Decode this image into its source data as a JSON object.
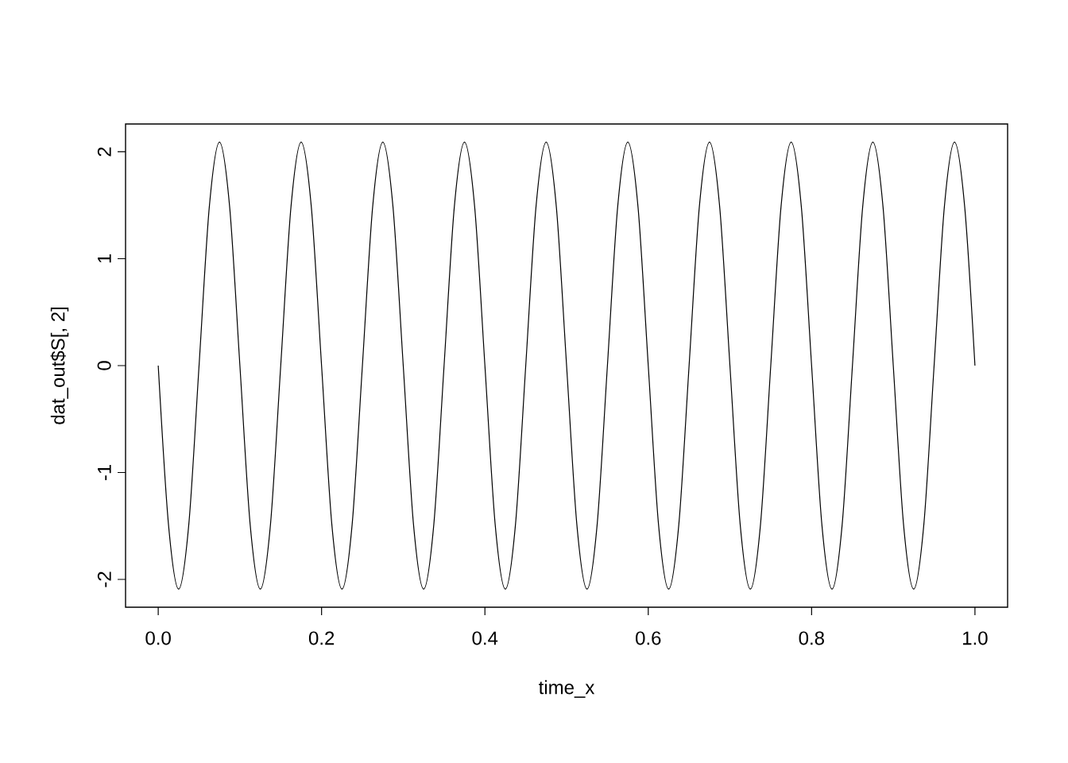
{
  "chart_data": {
    "type": "line",
    "xlabel": "time_x",
    "ylabel": "dat_out$S[, 2]",
    "xlim": [
      -0.04,
      1.04
    ],
    "ylim": [
      -2.26,
      2.26
    ],
    "xticks": [
      {
        "value": 0,
        "label": "0.0"
      },
      {
        "value": 0.2,
        "label": "0.2"
      },
      {
        "value": 0.4,
        "label": "0.4"
      },
      {
        "value": 0.6,
        "label": "0.6"
      },
      {
        "value": 0.8,
        "label": "0.8"
      },
      {
        "value": 1,
        "label": "1.0"
      }
    ],
    "yticks": [
      -2,
      -1,
      0,
      1,
      2
    ],
    "grid": false,
    "marker": "none",
    "line_style": "solid",
    "x": [
      0,
      0.0125,
      0.025,
      0.0375,
      0.05,
      0.0625,
      0.075,
      0.0875,
      0.1,
      0.1125,
      0.125,
      0.1375,
      0.15,
      0.1625,
      0.175,
      0.1875,
      0.2,
      0.2125,
      0.225,
      0.2375,
      0.25,
      0.2625,
      0.275,
      0.2875,
      0.3,
      0.3125,
      0.325,
      0.3375,
      0.35,
      0.3625,
      0.375,
      0.3875,
      0.4,
      0.4125,
      0.425,
      0.4375,
      0.45,
      0.4625,
      0.475,
      0.4875,
      0.5,
      0.5125,
      0.525,
      0.5375,
      0.55,
      0.5625,
      0.575,
      0.5875,
      0.6,
      0.6125,
      0.625,
      0.6375,
      0.65,
      0.6625,
      0.675,
      0.6875,
      0.7,
      0.7125,
      0.725,
      0.7375,
      0.75,
      0.7625,
      0.775,
      0.7875,
      0.8,
      0.8125,
      0.825,
      0.8375,
      0.85,
      0.8625,
      0.875,
      0.8875,
      0.9,
      0.9125,
      0.925,
      0.9375,
      0.95,
      0.9625,
      0.975,
      0.9875,
      1
    ],
    "series": [
      {
        "color": "#000000",
        "values": [
          0,
          -1.48,
          -2.09,
          -1.48,
          0,
          1.48,
          2.09,
          1.48,
          0,
          -1.48,
          -2.09,
          -1.48,
          0,
          1.48,
          2.09,
          1.48,
          0,
          -1.48,
          -2.09,
          -1.48,
          0,
          1.48,
          2.09,
          1.48,
          0,
          -1.48,
          -2.09,
          -1.48,
          0,
          1.48,
          2.09,
          1.48,
          0,
          -1.48,
          -2.09,
          -1.48,
          0,
          1.48,
          2.09,
          1.48,
          0,
          -1.48,
          -2.09,
          -1.48,
          0,
          1.48,
          2.09,
          1.48,
          0,
          -1.48,
          -2.09,
          -1.48,
          0,
          1.48,
          2.09,
          1.48,
          0,
          -1.48,
          -2.09,
          -1.48,
          0,
          1.48,
          2.09,
          1.48,
          0,
          -1.48,
          -2.09,
          -1.48,
          0,
          1.48,
          2.09,
          1.48,
          0,
          -1.48,
          -2.09,
          -1.48,
          0,
          1.48,
          2.09,
          1.48,
          0
        ]
      }
    ]
  }
}
